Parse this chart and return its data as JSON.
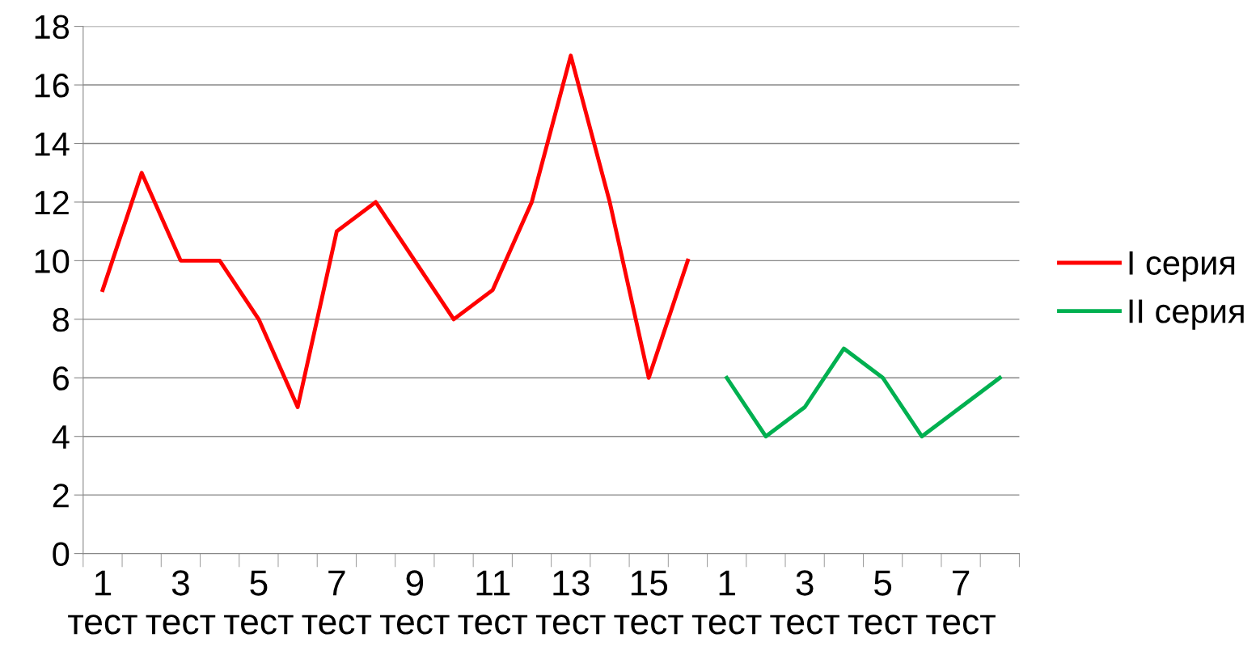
{
  "chart_data": {
    "type": "line",
    "categories": [
      "1\nтест",
      null,
      "3\nтест",
      null,
      "5\nтест",
      null,
      "7\nтест",
      null,
      "9\nтест",
      null,
      "11\nтест",
      null,
      "13\nтест",
      null,
      "15\nтест",
      null,
      "1\nтест",
      null,
      "3\nтест",
      null,
      "5\nтест",
      null,
      "7\nтест",
      null
    ],
    "series": [
      {
        "name": "I серия",
        "color": "#ff0000",
        "values": [
          9,
          13,
          10,
          10,
          8,
          5,
          11,
          12,
          10,
          8,
          9,
          12,
          17,
          12,
          6,
          10,
          null,
          null,
          null,
          null,
          null,
          null,
          null,
          null
        ]
      },
      {
        "name": "II серия",
        "color": "#00b050",
        "values": [
          null,
          null,
          null,
          null,
          null,
          null,
          null,
          null,
          null,
          null,
          null,
          null,
          null,
          null,
          null,
          null,
          6,
          4,
          5,
          7,
          6,
          4,
          5,
          6
        ]
      }
    ],
    "ylim": [
      0,
      18
    ],
    "yticks": [
      0,
      2,
      4,
      6,
      8,
      10,
      12,
      14,
      16,
      18
    ],
    "grid": "y",
    "legend": "right",
    "marker": "none",
    "line_style": "solid"
  }
}
